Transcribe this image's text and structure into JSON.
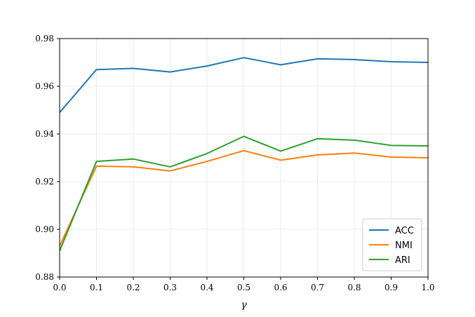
{
  "chart_data": {
    "type": "line",
    "title": "",
    "xlabel": "γ",
    "ylabel": "",
    "xlim": [
      0.0,
      1.0
    ],
    "ylim": [
      0.88,
      0.98
    ],
    "x": [
      0.0,
      0.1,
      0.2,
      0.3,
      0.4,
      0.5,
      0.6,
      0.7,
      0.8,
      0.9,
      1.0
    ],
    "x_ticks": [
      "0.0",
      "0.1",
      "0.2",
      "0.3",
      "0.4",
      "0.5",
      "0.6",
      "0.7",
      "0.8",
      "0.9",
      "1.0"
    ],
    "y_ticks": [
      "0.88",
      "0.90",
      "0.92",
      "0.94",
      "0.96",
      "0.98"
    ],
    "grid": true,
    "legend_position": "lower-right",
    "series": [
      {
        "name": "ACC",
        "color": "#1f77b4",
        "values": [
          0.949,
          0.967,
          0.9675,
          0.966,
          0.9685,
          0.972,
          0.969,
          0.9715,
          0.9712,
          0.9703,
          0.97
        ]
      },
      {
        "name": "NMI",
        "color": "#ff7f0e",
        "values": [
          0.893,
          0.9265,
          0.9262,
          0.9245,
          0.9285,
          0.933,
          0.929,
          0.9312,
          0.932,
          0.9303,
          0.93
        ]
      },
      {
        "name": "ARI",
        "color": "#2ca02c",
        "values": [
          0.891,
          0.9285,
          0.9295,
          0.9262,
          0.9318,
          0.939,
          0.9328,
          0.938,
          0.9374,
          0.9352,
          0.935
        ]
      }
    ]
  }
}
